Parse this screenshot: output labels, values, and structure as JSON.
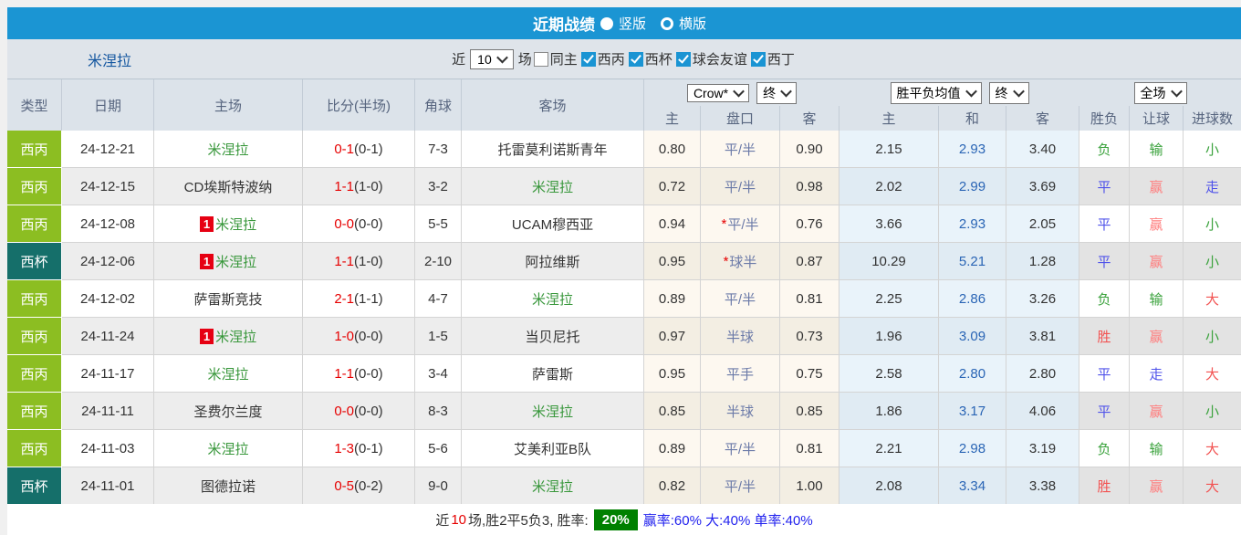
{
  "palette": {
    "topbar_blue": "#1b95d3",
    "league_colors": {
      "西丙": "#8cbe22",
      "西杯": "#156f6a"
    },
    "mine_team_green": "#38973b",
    "score_red": "#e60000",
    "avg_draw_blue": "#2a65b5",
    "summary_box_green": "#008000"
  },
  "title_bar": {
    "title": "近期战绩",
    "radio_vertical_label": "竖版",
    "radio_horizontal_label": "横版"
  },
  "filter_bar": {
    "team": "米涅拉",
    "near_label": "近",
    "games_value": "10",
    "games_label": "场",
    "checkboxes": [
      {
        "label": "同主",
        "checked": false
      },
      {
        "label": "西丙",
        "checked": true
      },
      {
        "label": "西杯",
        "checked": true
      },
      {
        "label": "球会友谊",
        "checked": true
      },
      {
        "label": "西丁",
        "checked": true
      }
    ]
  },
  "table": {
    "group_headers": [
      "类型",
      "日期",
      "主场",
      "比分(半场)",
      "角球",
      "客场"
    ],
    "selects": {
      "odds_company": "Crow*",
      "odds_time": "终",
      "avg_label": "胜平负均值",
      "avg_time": "终",
      "scope": "全场"
    },
    "sub_headers": [
      "主",
      "盘口",
      "客",
      "主",
      "和",
      "客",
      "胜负",
      "让球",
      "进球数"
    ],
    "rows": [
      {
        "league": "西丙",
        "date": "24-12-21",
        "home": {
          "name": "米涅拉",
          "mine": true,
          "badge": null
        },
        "score": {
          "full": "0-1",
          "half": "(0-1)"
        },
        "corner": "7-3",
        "away": {
          "name": "托雷莫利诺斯青年",
          "mine": false
        },
        "odds": {
          "home": "0.80",
          "star": null,
          "handicap": "平/半",
          "away": "0.90"
        },
        "avg": {
          "home": "2.15",
          "draw": "2.93",
          "away": "3.40"
        },
        "results": [
          {
            "text": "负",
            "color": "green"
          },
          {
            "text": "输",
            "color": "green"
          },
          {
            "text": "小",
            "color": "green"
          }
        ]
      },
      {
        "league": "西丙",
        "date": "24-12-15",
        "home": {
          "name": "CD埃斯特波纳",
          "mine": false,
          "badge": null
        },
        "score": {
          "full": "1-1",
          "half": "(1-0)"
        },
        "corner": "3-2",
        "away": {
          "name": "米涅拉",
          "mine": true
        },
        "odds": {
          "home": "0.72",
          "star": null,
          "handicap": "平/半",
          "away": "0.98"
        },
        "avg": {
          "home": "2.02",
          "draw": "2.99",
          "away": "3.69"
        },
        "results": [
          {
            "text": "平",
            "color": "blue"
          },
          {
            "text": "赢",
            "color": "pink"
          },
          {
            "text": "走",
            "color": "blue"
          }
        ]
      },
      {
        "league": "西丙",
        "date": "24-12-08",
        "home": {
          "name": "米涅拉",
          "mine": true,
          "badge": "1"
        },
        "score": {
          "full": "0-0",
          "half": "(0-0)"
        },
        "corner": "5-5",
        "away": {
          "name": "UCAM穆西亚",
          "mine": false
        },
        "odds": {
          "home": "0.94",
          "star": "*",
          "handicap": "平/半",
          "away": "0.76"
        },
        "avg": {
          "home": "3.66",
          "draw": "2.93",
          "away": "2.05"
        },
        "results": [
          {
            "text": "平",
            "color": "blue"
          },
          {
            "text": "赢",
            "color": "pink"
          },
          {
            "text": "小",
            "color": "green"
          }
        ]
      },
      {
        "league": "西杯",
        "date": "24-12-06",
        "home": {
          "name": "米涅拉",
          "mine": true,
          "badge": "1"
        },
        "score": {
          "full": "1-1",
          "half": "(1-0)"
        },
        "corner": "2-10",
        "away": {
          "name": "阿拉维斯",
          "mine": false
        },
        "odds": {
          "home": "0.95",
          "star": "*",
          "handicap": "球半",
          "away": "0.87"
        },
        "avg": {
          "home": "10.29",
          "draw": "5.21",
          "away": "1.28"
        },
        "results": [
          {
            "text": "平",
            "color": "blue"
          },
          {
            "text": "赢",
            "color": "pink"
          },
          {
            "text": "小",
            "color": "green"
          }
        ]
      },
      {
        "league": "西丙",
        "date": "24-12-02",
        "home": {
          "name": "萨雷斯竞技",
          "mine": false,
          "badge": null
        },
        "score": {
          "full": "2-1",
          "half": "(1-1)"
        },
        "corner": "4-7",
        "away": {
          "name": "米涅拉",
          "mine": true
        },
        "odds": {
          "home": "0.89",
          "star": null,
          "handicap": "平/半",
          "away": "0.81"
        },
        "avg": {
          "home": "2.25",
          "draw": "2.86",
          "away": "3.26"
        },
        "results": [
          {
            "text": "负",
            "color": "green"
          },
          {
            "text": "输",
            "color": "green"
          },
          {
            "text": "大",
            "color": "red"
          }
        ]
      },
      {
        "league": "西丙",
        "date": "24-11-24",
        "home": {
          "name": "米涅拉",
          "mine": true,
          "badge": "1"
        },
        "score": {
          "full": "1-0",
          "half": "(0-0)"
        },
        "corner": "1-5",
        "away": {
          "name": "当贝尼托",
          "mine": false
        },
        "odds": {
          "home": "0.97",
          "star": null,
          "handicap": "半球",
          "away": "0.73"
        },
        "avg": {
          "home": "1.96",
          "draw": "3.09",
          "away": "3.81"
        },
        "results": [
          {
            "text": "胜",
            "color": "red"
          },
          {
            "text": "赢",
            "color": "pink"
          },
          {
            "text": "小",
            "color": "green"
          }
        ]
      },
      {
        "league": "西丙",
        "date": "24-11-17",
        "home": {
          "name": "米涅拉",
          "mine": true,
          "badge": null
        },
        "score": {
          "full": "1-1",
          "half": "(0-0)"
        },
        "corner": "3-4",
        "away": {
          "name": "萨雷斯",
          "mine": false
        },
        "odds": {
          "home": "0.95",
          "star": null,
          "handicap": "平手",
          "away": "0.75"
        },
        "avg": {
          "home": "2.58",
          "draw": "2.80",
          "away": "2.80"
        },
        "results": [
          {
            "text": "平",
            "color": "blue"
          },
          {
            "text": "走",
            "color": "blue"
          },
          {
            "text": "大",
            "color": "red"
          }
        ]
      },
      {
        "league": "西丙",
        "date": "24-11-11",
        "home": {
          "name": "圣费尔兰度",
          "mine": false,
          "badge": null
        },
        "score": {
          "full": "0-0",
          "half": "(0-0)"
        },
        "corner": "8-3",
        "away": {
          "name": "米涅拉",
          "mine": true
        },
        "odds": {
          "home": "0.85",
          "star": null,
          "handicap": "半球",
          "away": "0.85"
        },
        "avg": {
          "home": "1.86",
          "draw": "3.17",
          "away": "4.06"
        },
        "results": [
          {
            "text": "平",
            "color": "blue"
          },
          {
            "text": "赢",
            "color": "pink"
          },
          {
            "text": "小",
            "color": "green"
          }
        ]
      },
      {
        "league": "西丙",
        "date": "24-11-03",
        "home": {
          "name": "米涅拉",
          "mine": true,
          "badge": null
        },
        "score": {
          "full": "1-3",
          "half": "(0-1)"
        },
        "corner": "5-6",
        "away": {
          "name": "艾美利亚B队",
          "mine": false
        },
        "odds": {
          "home": "0.89",
          "star": null,
          "handicap": "平/半",
          "away": "0.81"
        },
        "avg": {
          "home": "2.21",
          "draw": "2.98",
          "away": "3.19"
        },
        "results": [
          {
            "text": "负",
            "color": "green"
          },
          {
            "text": "输",
            "color": "green"
          },
          {
            "text": "大",
            "color": "red"
          }
        ]
      },
      {
        "league": "西杯",
        "date": "24-11-01",
        "home": {
          "name": "图德拉诺",
          "mine": false,
          "badge": null
        },
        "score": {
          "full": "0-5",
          "half": "(0-2)"
        },
        "corner": "9-0",
        "away": {
          "name": "米涅拉",
          "mine": true
        },
        "odds": {
          "home": "0.82",
          "star": null,
          "handicap": "平/半",
          "away": "1.00"
        },
        "avg": {
          "home": "2.08",
          "draw": "3.34",
          "away": "3.38"
        },
        "results": [
          {
            "text": "胜",
            "color": "red"
          },
          {
            "text": "赢",
            "color": "pink"
          },
          {
            "text": "大",
            "color": "red"
          }
        ]
      }
    ]
  },
  "summary": {
    "segments": [
      {
        "text": "近",
        "style": "dark"
      },
      {
        "text": "10",
        "style": "red"
      },
      {
        "text": "场,胜2平5负3, 胜率:",
        "style": "dark"
      },
      {
        "text": "20%",
        "style": "greenbox"
      },
      {
        "text": "赢率:60% 大:40% 单率:40%",
        "style": "blue"
      }
    ]
  }
}
